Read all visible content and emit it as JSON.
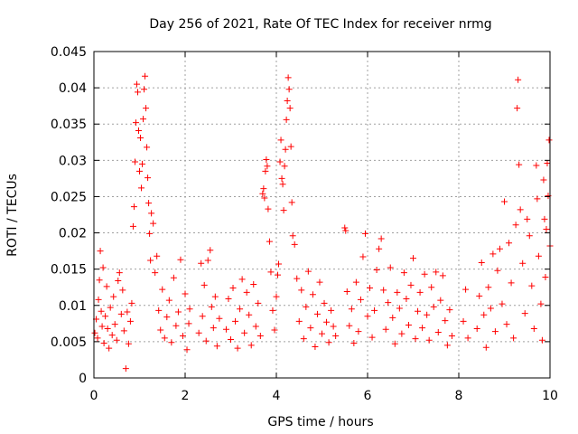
{
  "chart_data": {
    "type": "scatter",
    "title": "Day 256 of 2021, Rate Of TEC Index for receiver nrmg",
    "xlabel": "GPS time / hours",
    "ylabel": "ROTI / TECUs",
    "xlim": [
      0,
      10
    ],
    "ylim": [
      0,
      0.045
    ],
    "xticks": [
      0,
      2,
      4,
      6,
      8,
      10
    ],
    "xtick_labels": [
      "0",
      "2",
      "4",
      "6",
      "8",
      "10"
    ],
    "yticks": [
      0,
      0.005,
      0.01,
      0.015,
      0.02,
      0.025,
      0.03,
      0.035,
      0.04,
      0.045
    ],
    "ytick_labels": [
      "0",
      "0.005",
      "0.01",
      "0.015",
      "0.02",
      "0.025",
      "0.03",
      "0.035",
      "0.04",
      "0.045"
    ],
    "grid": true,
    "marker": "plus",
    "color": "#ff0000",
    "series": [
      {
        "name": "ROTI",
        "points": [
          [
            0.02,
            0.0062
          ],
          [
            0.05,
            0.0081
          ],
          [
            0.08,
            0.0055
          ],
          [
            0.1,
            0.0108
          ],
          [
            0.12,
            0.0135
          ],
          [
            0.14,
            0.0175
          ],
          [
            0.16,
            0.0092
          ],
          [
            0.18,
            0.0071
          ],
          [
            0.2,
            0.0152
          ],
          [
            0.22,
            0.0048
          ],
          [
            0.25,
            0.0085
          ],
          [
            0.28,
            0.0126
          ],
          [
            0.3,
            0.0068
          ],
          [
            0.33,
            0.0041
          ],
          [
            0.36,
            0.0097
          ],
          [
            0.4,
            0.0059
          ],
          [
            0.43,
            0.0112
          ],
          [
            0.46,
            0.0074
          ],
          [
            0.5,
            0.0052
          ],
          [
            0.53,
            0.0134
          ],
          [
            0.56,
            0.0145
          ],
          [
            0.6,
            0.0088
          ],
          [
            0.63,
            0.0121
          ],
          [
            0.66,
            0.0065
          ],
          [
            0.7,
            0.0013
          ],
          [
            0.73,
            0.0091
          ],
          [
            0.76,
            0.0047
          ],
          [
            0.8,
            0.0078
          ],
          [
            0.83,
            0.0103
          ],
          [
            0.86,
            0.0209
          ],
          [
            0.88,
            0.0236
          ],
          [
            0.9,
            0.0298
          ],
          [
            0.92,
            0.0352
          ],
          [
            0.94,
            0.0405
          ],
          [
            0.96,
            0.0394
          ],
          [
            0.98,
            0.0341
          ],
          [
            1.0,
            0.0285
          ],
          [
            1.02,
            0.0331
          ],
          [
            1.04,
            0.0262
          ],
          [
            1.06,
            0.0295
          ],
          [
            1.08,
            0.0357
          ],
          [
            1.1,
            0.0398
          ],
          [
            1.12,
            0.0416
          ],
          [
            1.14,
            0.0372
          ],
          [
            1.16,
            0.0318
          ],
          [
            1.18,
            0.0276
          ],
          [
            1.2,
            0.0241
          ],
          [
            1.22,
            0.0199
          ],
          [
            1.24,
            0.0162
          ],
          [
            1.26,
            0.0227
          ],
          [
            1.3,
            0.0213
          ],
          [
            1.34,
            0.0145
          ],
          [
            1.38,
            0.0168
          ],
          [
            1.42,
            0.0093
          ],
          [
            1.46,
            0.0066
          ],
          [
            1.5,
            0.0122
          ],
          [
            1.55,
            0.0055
          ],
          [
            1.6,
            0.0084
          ],
          [
            1.65,
            0.0107
          ],
          [
            1.7,
            0.0049
          ],
          [
            1.75,
            0.0138
          ],
          [
            1.8,
            0.0072
          ],
          [
            1.85,
            0.0091
          ],
          [
            1.9,
            0.0163
          ],
          [
            1.95,
            0.0058
          ],
          [
            2.0,
            0.0116
          ],
          [
            2.04,
            0.0039
          ],
          [
            2.08,
            0.0075
          ],
          [
            2.1,
            0.0095
          ],
          [
            2.3,
            0.0062
          ],
          [
            2.35,
            0.0158
          ],
          [
            2.38,
            0.0085
          ],
          [
            2.42,
            0.0128
          ],
          [
            2.46,
            0.0051
          ],
          [
            2.5,
            0.0162
          ],
          [
            2.55,
            0.0176
          ],
          [
            2.58,
            0.0098
          ],
          [
            2.62,
            0.0069
          ],
          [
            2.66,
            0.0112
          ],
          [
            2.7,
            0.0044
          ],
          [
            2.75,
            0.0082
          ],
          [
            2.9,
            0.0067
          ],
          [
            2.95,
            0.0109
          ],
          [
            3.0,
            0.0053
          ],
          [
            3.05,
            0.0124
          ],
          [
            3.1,
            0.0078
          ],
          [
            3.15,
            0.0041
          ],
          [
            3.2,
            0.0095
          ],
          [
            3.25,
            0.0136
          ],
          [
            3.3,
            0.0062
          ],
          [
            3.35,
            0.0118
          ],
          [
            3.4,
            0.0087
          ],
          [
            3.45,
            0.0045
          ],
          [
            3.5,
            0.0129
          ],
          [
            3.55,
            0.0071
          ],
          [
            3.6,
            0.0103
          ],
          [
            3.65,
            0.0058
          ],
          [
            3.7,
            0.0254
          ],
          [
            3.72,
            0.0261
          ],
          [
            3.74,
            0.0248
          ],
          [
            3.76,
            0.0285
          ],
          [
            3.78,
            0.0301
          ],
          [
            3.8,
            0.0292
          ],
          [
            3.82,
            0.0233
          ],
          [
            3.85,
            0.0188
          ],
          [
            3.88,
            0.0146
          ],
          [
            3.92,
            0.0093
          ],
          [
            3.96,
            0.0066
          ],
          [
            4.0,
            0.0112
          ],
          [
            4.03,
            0.0142
          ],
          [
            4.05,
            0.0157
          ],
          [
            4.08,
            0.0298
          ],
          [
            4.1,
            0.0328
          ],
          [
            4.12,
            0.0275
          ],
          [
            4.14,
            0.0267
          ],
          [
            4.16,
            0.0231
          ],
          [
            4.18,
            0.0292
          ],
          [
            4.2,
            0.0315
          ],
          [
            4.22,
            0.0356
          ],
          [
            4.24,
            0.0382
          ],
          [
            4.26,
            0.0414
          ],
          [
            4.28,
            0.0398
          ],
          [
            4.3,
            0.0372
          ],
          [
            4.32,
            0.0319
          ],
          [
            4.34,
            0.0242
          ],
          [
            4.36,
            0.0196
          ],
          [
            4.4,
            0.0184
          ],
          [
            4.45,
            0.0137
          ],
          [
            4.5,
            0.0078
          ],
          [
            4.55,
            0.0121
          ],
          [
            4.6,
            0.0054
          ],
          [
            4.65,
            0.0098
          ],
          [
            4.7,
            0.0147
          ],
          [
            4.75,
            0.0069
          ],
          [
            4.8,
            0.0115
          ],
          [
            4.85,
            0.0043
          ],
          [
            4.9,
            0.0088
          ],
          [
            4.95,
            0.0132
          ],
          [
            5.0,
            0.0061
          ],
          [
            5.05,
            0.0103
          ],
          [
            5.1,
            0.0077
          ],
          [
            5.15,
            0.0049
          ],
          [
            5.2,
            0.0093
          ],
          [
            5.25,
            0.0071
          ],
          [
            5.3,
            0.0058
          ],
          [
            5.5,
            0.0207
          ],
          [
            5.52,
            0.0203
          ],
          [
            5.55,
            0.0119
          ],
          [
            5.6,
            0.0072
          ],
          [
            5.65,
            0.0095
          ],
          [
            5.7,
            0.0048
          ],
          [
            5.75,
            0.0132
          ],
          [
            5.8,
            0.0064
          ],
          [
            5.85,
            0.0108
          ],
          [
            5.9,
            0.0167
          ],
          [
            5.95,
            0.0199
          ],
          [
            6.0,
            0.0085
          ],
          [
            6.05,
            0.0124
          ],
          [
            6.1,
            0.0056
          ],
          [
            6.15,
            0.0093
          ],
          [
            6.2,
            0.0149
          ],
          [
            6.25,
            0.0178
          ],
          [
            6.3,
            0.0192
          ],
          [
            6.35,
            0.0121
          ],
          [
            6.4,
            0.0067
          ],
          [
            6.45,
            0.0104
          ],
          [
            6.5,
            0.0152
          ],
          [
            6.55,
            0.0083
          ],
          [
            6.6,
            0.0047
          ],
          [
            6.65,
            0.0118
          ],
          [
            6.7,
            0.0096
          ],
          [
            6.75,
            0.0061
          ],
          [
            6.8,
            0.0145
          ],
          [
            6.85,
            0.0109
          ],
          [
            6.9,
            0.0073
          ],
          [
            6.95,
            0.0128
          ],
          [
            7.0,
            0.0165
          ],
          [
            7.05,
            0.0054
          ],
          [
            7.1,
            0.0092
          ],
          [
            7.15,
            0.0118
          ],
          [
            7.2,
            0.0069
          ],
          [
            7.25,
            0.0143
          ],
          [
            7.3,
            0.0087
          ],
          [
            7.35,
            0.0052
          ],
          [
            7.4,
            0.0125
          ],
          [
            7.45,
            0.0098
          ],
          [
            7.5,
            0.0146
          ],
          [
            7.55,
            0.0063
          ],
          [
            7.6,
            0.0107
          ],
          [
            7.65,
            0.0141
          ],
          [
            7.7,
            0.0079
          ],
          [
            7.75,
            0.0045
          ],
          [
            7.8,
            0.0094
          ],
          [
            7.85,
            0.0058
          ],
          [
            8.1,
            0.0078
          ],
          [
            8.15,
            0.0122
          ],
          [
            8.2,
            0.0055
          ],
          [
            8.4,
            0.0068
          ],
          [
            8.45,
            0.0113
          ],
          [
            8.5,
            0.0159
          ],
          [
            8.55,
            0.0087
          ],
          [
            8.6,
            0.0042
          ],
          [
            8.65,
            0.0125
          ],
          [
            8.7,
            0.0096
          ],
          [
            8.75,
            0.0171
          ],
          [
            8.8,
            0.0064
          ],
          [
            8.85,
            0.0148
          ],
          [
            8.9,
            0.0178
          ],
          [
            8.95,
            0.0102
          ],
          [
            9.0,
            0.0243
          ],
          [
            9.05,
            0.0074
          ],
          [
            9.1,
            0.0186
          ],
          [
            9.15,
            0.0131
          ],
          [
            9.2,
            0.0055
          ],
          [
            9.25,
            0.0211
          ],
          [
            9.28,
            0.0372
          ],
          [
            9.3,
            0.0411
          ],
          [
            9.32,
            0.0294
          ],
          [
            9.35,
            0.0232
          ],
          [
            9.4,
            0.0158
          ],
          [
            9.45,
            0.0089
          ],
          [
            9.5,
            0.0219
          ],
          [
            9.55,
            0.0196
          ],
          [
            9.6,
            0.0127
          ],
          [
            9.65,
            0.0068
          ],
          [
            9.7,
            0.0293
          ],
          [
            9.72,
            0.0247
          ],
          [
            9.75,
            0.0168
          ],
          [
            9.8,
            0.0102
          ],
          [
            9.83,
            0.0052
          ],
          [
            9.86,
            0.0273
          ],
          [
            9.88,
            0.0219
          ],
          [
            9.9,
            0.0139
          ],
          [
            9.92,
            0.0205
          ],
          [
            9.94,
            0.0296
          ],
          [
            9.96,
            0.0251
          ],
          [
            9.98,
            0.0328
          ],
          [
            10.0,
            0.0182
          ]
        ]
      }
    ]
  }
}
